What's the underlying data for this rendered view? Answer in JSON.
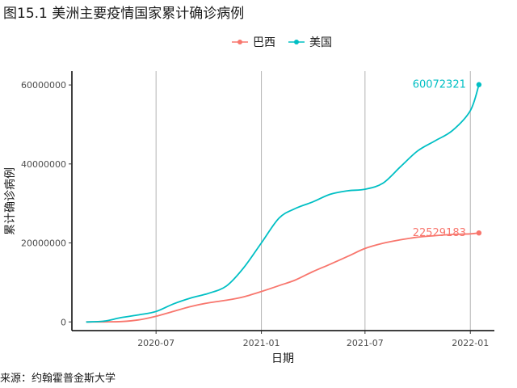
{
  "chart_data": {
    "type": "line",
    "title": "图15.1 美洲主要疫情国家累计确诊病例",
    "source": "来源：约翰霍普金斯大学",
    "xlabel": "日期",
    "ylabel": "累计确诊病例",
    "x_ticks": [
      "2020-07",
      "2021-01",
      "2021-07",
      "2022-01"
    ],
    "y_ticks": [
      "0",
      "20000000",
      "40000000",
      "60000000"
    ],
    "ylim": [
      -2200000,
      63500000
    ],
    "xlim": [
      "2020-02-05",
      "2022-02-12"
    ],
    "grid": "vertical major lines",
    "legend_position": "top",
    "series": [
      {
        "name": "巴西",
        "color": "#F8766D",
        "end_label": "22529183",
        "points": [
          [
            "2020-03-01",
            0
          ],
          [
            "2020-04-01",
            6000
          ],
          [
            "2020-05-01",
            90000
          ],
          [
            "2020-06-01",
            530000
          ],
          [
            "2020-07-01",
            1450000
          ],
          [
            "2020-08-01",
            2700000
          ],
          [
            "2020-09-01",
            3950000
          ],
          [
            "2020-10-01",
            4850000
          ],
          [
            "2020-11-01",
            5500000
          ],
          [
            "2020-12-01",
            6350000
          ],
          [
            "2021-01-01",
            7700000
          ],
          [
            "2021-02-01",
            9200000
          ],
          [
            "2021-03-01",
            10600000
          ],
          [
            "2021-04-01",
            12750000
          ],
          [
            "2021-05-01",
            14600000
          ],
          [
            "2021-06-01",
            16600000
          ],
          [
            "2021-07-01",
            18600000
          ],
          [
            "2021-08-01",
            19900000
          ],
          [
            "2021-09-01",
            20800000
          ],
          [
            "2021-10-01",
            21450000
          ],
          [
            "2021-11-01",
            21850000
          ],
          [
            "2021-12-01",
            22150000
          ],
          [
            "2022-01-01",
            22300000
          ],
          [
            "2022-01-16",
            22529183
          ]
        ]
      },
      {
        "name": "美国",
        "color": "#00BFC4",
        "end_label": "60072321",
        "points": [
          [
            "2020-03-01",
            70
          ],
          [
            "2020-04-01",
            200000
          ],
          [
            "2020-05-01",
            1100000
          ],
          [
            "2020-06-01",
            1800000
          ],
          [
            "2020-07-01",
            2650000
          ],
          [
            "2020-08-01",
            4600000
          ],
          [
            "2020-09-01",
            6100000
          ],
          [
            "2020-10-01",
            7250000
          ],
          [
            "2020-11-01",
            9100000
          ],
          [
            "2020-12-01",
            13700000
          ],
          [
            "2021-01-01",
            20000000
          ],
          [
            "2021-02-01",
            26300000
          ],
          [
            "2021-03-01",
            28700000
          ],
          [
            "2021-04-01",
            30400000
          ],
          [
            "2021-05-01",
            32300000
          ],
          [
            "2021-06-01",
            33200000
          ],
          [
            "2021-07-01",
            33600000
          ],
          [
            "2021-08-01",
            35100000
          ],
          [
            "2021-09-01",
            39300000
          ],
          [
            "2021-10-01",
            43300000
          ],
          [
            "2021-11-01",
            45900000
          ],
          [
            "2021-12-01",
            48500000
          ],
          [
            "2022-01-01",
            53500000
          ],
          [
            "2022-01-16",
            60072321
          ]
        ]
      }
    ]
  }
}
